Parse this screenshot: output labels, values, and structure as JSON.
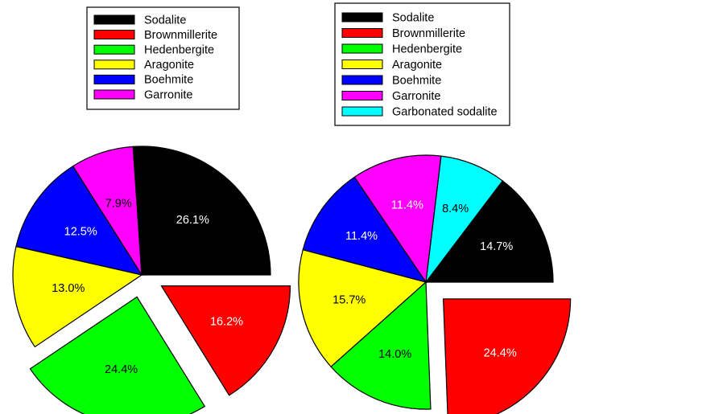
{
  "chart_data": [
    {
      "type": "pie",
      "title": "",
      "slices": [
        {
          "label": "Sodalite",
          "value": 26.1,
          "display": "26.1%",
          "color": "#000000",
          "text_color": "#ffffff",
          "exploded": false
        },
        {
          "label": "Garronite",
          "value": 7.9,
          "display": "7.9%",
          "color": "#ff00ff",
          "text_color": "#000000",
          "exploded": false
        },
        {
          "label": "Boehmite",
          "value": 12.5,
          "display": "12.5%",
          "color": "#0000ff",
          "text_color": "#ffffff",
          "exploded": false
        },
        {
          "label": "Aragonite",
          "value": 13.0,
          "display": "13.0%",
          "color": "#ffff00",
          "text_color": "#000000",
          "exploded": false
        },
        {
          "label": "Hedenbergite",
          "value": 24.4,
          "display": "24.4%",
          "color": "#00ff00",
          "text_color": "#000000",
          "exploded": true
        },
        {
          "label": "Brownmillerite",
          "value": 16.2,
          "display": "16.2%",
          "color": "#ff0000",
          "text_color": "#ffffff",
          "exploded": true
        }
      ],
      "legend": [
        "Sodalite",
        "Brownmillerite",
        "Hedenbergite",
        "Aragonite",
        "Boehmite",
        "Garronite"
      ],
      "legend_placement": "top"
    },
    {
      "type": "pie",
      "title": "",
      "slices": [
        {
          "label": "Sodalite",
          "value": 14.7,
          "display": "14.7%",
          "color": "#000000",
          "text_color": "#ffffff",
          "exploded": false
        },
        {
          "label": "Garbonated sodalite",
          "value": 8.4,
          "display": "8.4%",
          "color": "#00ffff",
          "text_color": "#000000",
          "exploded": false
        },
        {
          "label": "Garronite",
          "value": 11.4,
          "display": "11.4%",
          "color": "#ff00ff",
          "text_color": "#ffffff",
          "exploded": false
        },
        {
          "label": "Boehmite",
          "value": 11.4,
          "display": "11.4%",
          "color": "#0000ff",
          "text_color": "#ffffff",
          "exploded": false
        },
        {
          "label": "Aragonite",
          "value": 15.7,
          "display": "15.7%",
          "color": "#ffff00",
          "text_color": "#000000",
          "exploded": false
        },
        {
          "label": "Hedenbergite",
          "value": 14.0,
          "display": "14.0%",
          "color": "#00ff00",
          "text_color": "#000000",
          "exploded": false
        },
        {
          "label": "Brownmillerite",
          "value": 24.4,
          "display": "24.4%",
          "color": "#ff0000",
          "text_color": "#ffffff",
          "exploded": true
        }
      ],
      "legend": [
        "Sodalite",
        "Brownmillerite",
        "Hedenbergite",
        "Aragonite",
        "Boehmite",
        "Garronite",
        "Garbonated sodalite"
      ],
      "legend_placement": "top"
    }
  ]
}
